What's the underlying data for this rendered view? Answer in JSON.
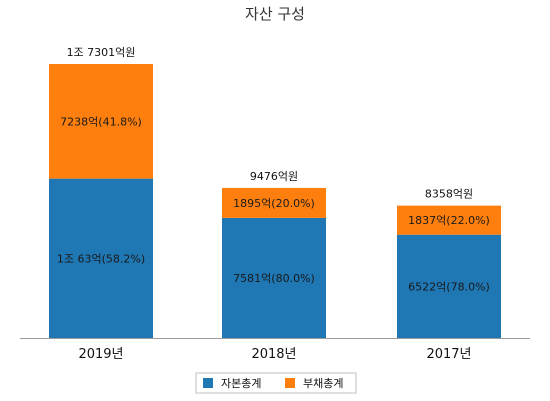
{
  "chart_data": {
    "type": "bar",
    "stacked": true,
    "title": "자산 구성",
    "categories": [
      "2019년",
      "2018년",
      "2017년"
    ],
    "totals": [
      17301,
      9476,
      8358
    ],
    "total_labels": [
      "1조 7301억원",
      "9476억원",
      "8358억원"
    ],
    "series": [
      {
        "name": "자본총계",
        "color": "#1f77b4",
        "values": [
          10063,
          7581,
          6522
        ],
        "labels": [
          "1조 63억(58.2%)",
          "7581억(80.0%)",
          "6522억(78.0%)"
        ]
      },
      {
        "name": "부채총계",
        "color": "#ff7f0e",
        "values": [
          7238,
          1895,
          1837
        ],
        "labels": [
          "7238억(41.8%)",
          "1895억(20.0%)",
          "1837억(22.0%)"
        ]
      }
    ],
    "ylim": [
      0,
      17301
    ],
    "grid": false,
    "legend": "bottom"
  }
}
